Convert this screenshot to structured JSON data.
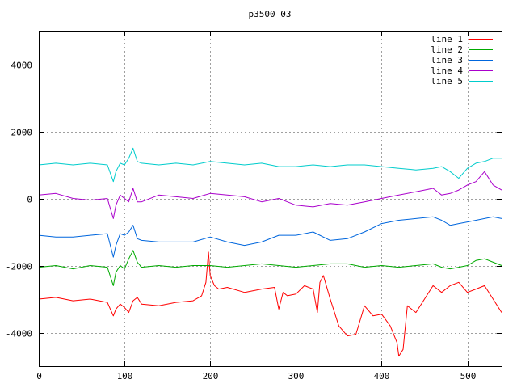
{
  "chart_data": {
    "type": "line",
    "title": "p3500_03",
    "xlabel": "",
    "ylabel": "",
    "xlim": [
      0,
      540
    ],
    "ylim": [
      -5000,
      5000
    ],
    "x_ticks": [
      0,
      100,
      200,
      300,
      400,
      500
    ],
    "y_ticks": [
      -4000,
      -2000,
      0,
      2000,
      4000
    ],
    "grid": true,
    "legend_position": "top-right",
    "series": [
      {
        "name": "line 1",
        "color": "#ff0000",
        "x": [
          0,
          20,
          40,
          60,
          80,
          87,
          90,
          95,
          100,
          105,
          110,
          115,
          120,
          140,
          160,
          180,
          190,
          195,
          198,
          200,
          205,
          210,
          220,
          240,
          260,
          275,
          280,
          285,
          290,
          300,
          310,
          320,
          325,
          328,
          332,
          340,
          350,
          360,
          370,
          380,
          390,
          400,
          410,
          418,
          420,
          425,
          430,
          440,
          450,
          460,
          470,
          480,
          490,
          500,
          510,
          520,
          530,
          540
        ],
        "y": [
          -3000,
          -2950,
          -3050,
          -3000,
          -3100,
          -3500,
          -3300,
          -3150,
          -3250,
          -3400,
          -3050,
          -2950,
          -3150,
          -3200,
          -3100,
          -3050,
          -2900,
          -2500,
          -1600,
          -2300,
          -2600,
          -2700,
          -2650,
          -2800,
          -2700,
          -2650,
          -3300,
          -2800,
          -2900,
          -2850,
          -2600,
          -2700,
          -3400,
          -2500,
          -2300,
          -3000,
          -3800,
          -4100,
          -4050,
          -3200,
          -3500,
          -3450,
          -3800,
          -4300,
          -4700,
          -4500,
          -3200,
          -3400,
          -3000,
          -2600,
          -2800,
          -2600,
          -2500,
          -2800,
          -2700,
          -2600,
          -3000,
          -3400
        ]
      },
      {
        "name": "line 2",
        "color": "#00aa00",
        "x": [
          0,
          20,
          40,
          60,
          80,
          87,
          90,
          95,
          100,
          105,
          110,
          115,
          120,
          140,
          160,
          180,
          200,
          220,
          240,
          260,
          280,
          300,
          320,
          340,
          360,
          380,
          400,
          420,
          440,
          460,
          470,
          480,
          490,
          500,
          510,
          520,
          530,
          540
        ],
        "y": [
          -2050,
          -2000,
          -2100,
          -2000,
          -2050,
          -2600,
          -2200,
          -2000,
          -2100,
          -1800,
          -1550,
          -1900,
          -2050,
          -2000,
          -2050,
          -2000,
          -2000,
          -2050,
          -2000,
          -1950,
          -2000,
          -2050,
          -2000,
          -1950,
          -1950,
          -2050,
          -2000,
          -2050,
          -2000,
          -1950,
          -2050,
          -2100,
          -2050,
          -2000,
          -1850,
          -1800,
          -1900,
          -2000
        ]
      },
      {
        "name": "line 3",
        "color": "#0066dd",
        "x": [
          0,
          20,
          40,
          60,
          80,
          87,
          90,
          95,
          100,
          105,
          110,
          115,
          120,
          140,
          160,
          180,
          200,
          220,
          240,
          260,
          280,
          300,
          320,
          340,
          360,
          380,
          400,
          420,
          440,
          460,
          470,
          480,
          490,
          500,
          510,
          520,
          530,
          540
        ],
        "y": [
          -1100,
          -1150,
          -1150,
          -1100,
          -1050,
          -1750,
          -1400,
          -1050,
          -1100,
          -1000,
          -800,
          -1200,
          -1250,
          -1300,
          -1300,
          -1300,
          -1150,
          -1300,
          -1400,
          -1300,
          -1100,
          -1100,
          -1000,
          -1250,
          -1200,
          -1000,
          -750,
          -650,
          -600,
          -550,
          -650,
          -800,
          -750,
          -700,
          -650,
          -600,
          -550,
          -600
        ]
      },
      {
        "name": "line 4",
        "color": "#aa00cc",
        "x": [
          0,
          20,
          40,
          60,
          80,
          87,
          90,
          95,
          100,
          105,
          110,
          115,
          120,
          140,
          160,
          180,
          200,
          220,
          240,
          260,
          280,
          290,
          300,
          320,
          340,
          360,
          380,
          400,
          420,
          440,
          460,
          470,
          480,
          490,
          500,
          510,
          520,
          530,
          540
        ],
        "y": [
          100,
          150,
          0,
          -50,
          0,
          -600,
          -200,
          100,
          0,
          -100,
          300,
          -100,
          -100,
          100,
          50,
          0,
          150,
          100,
          50,
          -100,
          0,
          -100,
          -200,
          -250,
          -150,
          -200,
          -100,
          0,
          100,
          200,
          300,
          100,
          150,
          250,
          400,
          500,
          800,
          400,
          250
        ]
      },
      {
        "name": "line 5",
        "color": "#00cccc",
        "x": [
          0,
          20,
          40,
          60,
          80,
          87,
          90,
          95,
          100,
          105,
          110,
          115,
          120,
          140,
          160,
          180,
          200,
          220,
          240,
          260,
          280,
          300,
          320,
          340,
          360,
          380,
          400,
          420,
          440,
          460,
          470,
          480,
          490,
          500,
          510,
          520,
          530,
          540
        ],
        "y": [
          1000,
          1050,
          1000,
          1050,
          1000,
          500,
          800,
          1050,
          1000,
          1200,
          1500,
          1100,
          1050,
          1000,
          1050,
          1000,
          1100,
          1050,
          1000,
          1050,
          950,
          950,
          1000,
          950,
          1000,
          1000,
          950,
          900,
          850,
          900,
          950,
          800,
          600,
          900,
          1050,
          1100,
          1200,
          1200
        ]
      }
    ]
  }
}
